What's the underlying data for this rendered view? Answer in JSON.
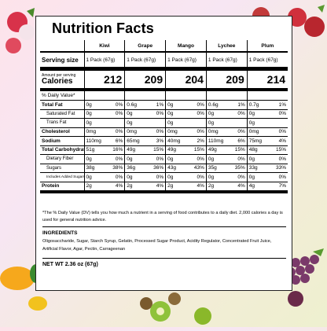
{
  "title": "Nutrition Facts",
  "products": [
    "Kiwi",
    "Grape",
    "Mango",
    "Lychee",
    "Plum"
  ],
  "serving_label": "Serving size",
  "serving_values": [
    "1 Pack (67g)",
    "1 Pack (67g)",
    "1 Pack (67g)",
    "1 Pack (67g)",
    "1 Pack (67g)"
  ],
  "amount_per_serving": "Amount per serving",
  "calories_label": "Calories",
  "calories_values": [
    "212",
    "209",
    "204",
    "209",
    "214"
  ],
  "dv_label": "% Daily Value*",
  "rows": [
    {
      "label": "Total Fat",
      "type": "main",
      "vals": [
        [
          "0g",
          "0%"
        ],
        [
          "0.6g",
          "1%"
        ],
        [
          "0g",
          "0%"
        ],
        [
          "0.6g",
          "1%"
        ],
        [
          "0.7g",
          "1%"
        ]
      ]
    },
    {
      "label": "Saturated Fat",
      "type": "sub",
      "vals": [
        [
          "0g",
          "0%"
        ],
        [
          "0g",
          "0%"
        ],
        [
          "0g",
          "0%"
        ],
        [
          "0g",
          "0%"
        ],
        [
          "0g",
          "0%"
        ]
      ]
    },
    {
      "label": "Trans Fat",
      "type": "sub",
      "vals": [
        [
          "0g",
          ""
        ],
        [
          "0g",
          ""
        ],
        [
          "0g",
          ""
        ],
        [
          "0g",
          ""
        ],
        [
          "0g",
          ""
        ]
      ]
    },
    {
      "label": "Cholesterol",
      "type": "main",
      "vals": [
        [
          "0mg",
          "0%"
        ],
        [
          "0mg",
          "0%"
        ],
        [
          "0mg",
          "0%"
        ],
        [
          "0mg",
          "0%"
        ],
        [
          "0mg",
          "0%"
        ]
      ]
    },
    {
      "label": "Sodium",
      "type": "main",
      "vals": [
        [
          "110mg",
          "6%"
        ],
        [
          "65mg",
          "3%"
        ],
        [
          "40mg",
          "2%"
        ],
        [
          "110mg",
          "6%"
        ],
        [
          "75mg",
          "4%"
        ]
      ]
    },
    {
      "label": "Total Carbohydrate",
      "type": "main",
      "vals": [
        [
          "51g",
          "16%"
        ],
        [
          "49g",
          "15%"
        ],
        [
          "49g",
          "15%"
        ],
        [
          "49g",
          "15%"
        ],
        [
          "48g",
          "15%"
        ]
      ]
    },
    {
      "label": "Dietary Fiber",
      "type": "sub",
      "vals": [
        [
          "0g",
          "0%"
        ],
        [
          "0g",
          "0%"
        ],
        [
          "0g",
          "0%"
        ],
        [
          "0g",
          "0%"
        ],
        [
          "0g",
          "0%"
        ]
      ]
    },
    {
      "label": "Sugars",
      "type": "sub",
      "vals": [
        [
          "38g",
          "38%"
        ],
        [
          "36g",
          "36%"
        ],
        [
          "43g",
          "43%"
        ],
        [
          "35g",
          "35%"
        ],
        [
          "33g",
          "33%"
        ]
      ]
    },
    {
      "label": "Includes  Added Sugars",
      "type": "sub-tiny",
      "vals": [
        [
          "0g",
          "0%"
        ],
        [
          "0g",
          "0%"
        ],
        [
          "0g",
          "0%"
        ],
        [
          "0g",
          "0%"
        ],
        [
          "0g",
          "0%"
        ]
      ]
    },
    {
      "label": "Protein",
      "type": "main-end",
      "vals": [
        [
          "2g",
          "4%"
        ],
        [
          "2g",
          "4%"
        ],
        [
          "2g",
          "4%"
        ],
        [
          "2g",
          "4%"
        ],
        [
          "4g",
          "7%"
        ]
      ]
    }
  ],
  "footnote": "*The % Daily Value (DV) tells you how much a nutrient in a serving of food contributes to a daily diet. 2,000 calories a day is used for general nutrition advice.",
  "ingredients_heading": "INGREDIENTS",
  "ingredients_text": "Oligosaccharide, Sugar, Starch Syrup, Gelatin, Processed Sugar Product, Acidity Regulator, Concentrated Fruit Juice, Artificial Flavor, Agar, Pectin, Carrageenan",
  "net_weight": "NET WT 2.36 oz (67g)",
  "decorations": [
    "lychee-image",
    "plum-image",
    "mango-image",
    "kiwi-image",
    "grape-image"
  ]
}
